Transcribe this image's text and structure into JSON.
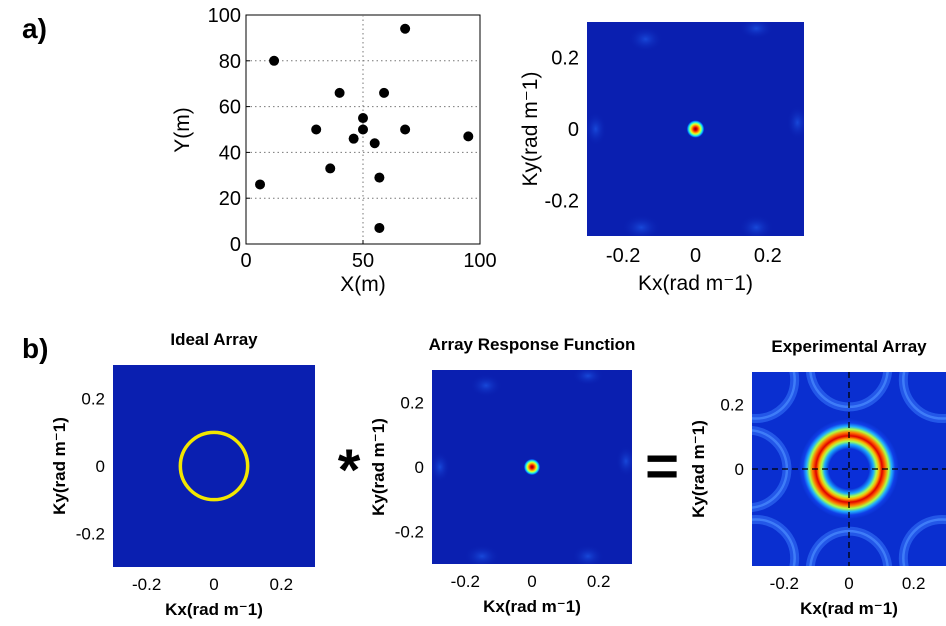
{
  "panel_labels": [
    "a)",
    "b)"
  ],
  "operators": {
    "convolve": "*",
    "equals": "="
  },
  "chart_data": [
    {
      "type": "scatter",
      "title": "",
      "xlabel": "X(m)",
      "ylabel": "Y(m)",
      "xlim": [
        0,
        100
      ],
      "ylim": [
        0,
        100
      ],
      "xticks": [
        "0",
        "50",
        "100"
      ],
      "yticks": [
        "0",
        "20",
        "40",
        "60",
        "80",
        "100"
      ],
      "grid": "center dotted lines at x=50 and y=60/40/20/80",
      "color": "#000000",
      "x": [
        6,
        12,
        30,
        36,
        40,
        46,
        50,
        50,
        55,
        57,
        57,
        59,
        68,
        68,
        95
      ],
      "y": [
        26,
        80,
        50,
        33,
        66,
        46,
        55,
        50,
        44,
        29,
        7,
        66,
        94,
        50,
        47
      ]
    },
    {
      "type": "heatmap",
      "title": "",
      "xlabel": "Kx(rad m⁻1)",
      "ylabel": "Ky(rad m⁻1)",
      "xlim": [
        -0.3,
        0.3
      ],
      "ylim": [
        -0.3,
        0.3
      ],
      "xticks": [
        "-0.2",
        "0",
        "0.2"
      ],
      "yticks": [
        "0.2",
        "0",
        "-0.2"
      ],
      "pattern": "single narrow peak at origin",
      "peak_radius": 0.02
    },
    {
      "type": "heatmap",
      "title": "Ideal Array",
      "xlabel": "Kx(rad m⁻1)",
      "ylabel": "Ky(rad m⁻1)",
      "xlim": [
        -0.3,
        0.3
      ],
      "ylim": [
        -0.3,
        0.3
      ],
      "xticks": [
        "-0.2",
        "0",
        "0.2"
      ],
      "yticks": [
        "0.2",
        "0",
        "-0.2"
      ],
      "pattern": "thin ring",
      "ring_radius": 0.1,
      "ring_color": "#f2e600"
    },
    {
      "type": "heatmap",
      "title": "Array Response Function",
      "xlabel": "Kx(rad m⁻1)",
      "ylabel": "Ky(rad m⁻1)",
      "xlim": [
        -0.3,
        0.3
      ],
      "ylim": [
        -0.3,
        0.3
      ],
      "xticks": [
        "-0.2",
        "0",
        "0.2"
      ],
      "yticks": [
        "0.2",
        "0",
        "-0.2"
      ],
      "pattern": "single narrow peak at origin",
      "peak_radius": 0.02
    },
    {
      "type": "heatmap",
      "title": "Experimental Array",
      "xlabel": "Kx(rad m⁻1)",
      "ylabel": "Ky(rad m⁻1)",
      "xlim": [
        -0.3,
        0.3
      ],
      "ylim": [
        -0.3,
        0.3
      ],
      "xticks": [
        "-0.2",
        "0",
        "0.2"
      ],
      "yticks": [
        "0.2",
        "0"
      ],
      "pattern": "thick ring with dashed crosshair",
      "ring_radius": 0.1,
      "crosshair": true
    }
  ]
}
